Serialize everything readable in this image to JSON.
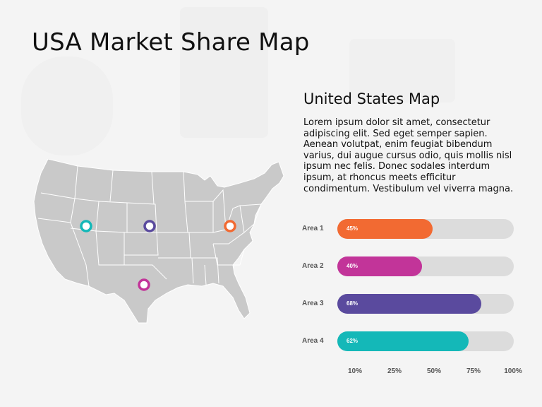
{
  "title": "USA Market Share Map",
  "subtitle": "United States Map",
  "description": "Lorem ipsum dolor sit amet, consectetur adipiscing elit. Sed eget semper sapien. Aenean volutpat, enim feugiat bibendum varius, dui augue cursus odio, quis mollis nisl ipsum nec felis. Donec sodales interdum ipsum, at rhoncus meets efficitur condimentum. Vestibulum vel viverra magna.",
  "chart_data": {
    "type": "bar",
    "orientation": "horizontal",
    "categories": [
      "Area 1",
      "Area 2",
      "Area 3",
      "Area 4"
    ],
    "values": [
      45,
      40,
      68,
      62
    ],
    "value_labels": [
      "45%",
      "40%",
      "68%",
      "62%"
    ],
    "colors": [
      "#f26a32",
      "#c23499",
      "#5a4a9e",
      "#14b8b8"
    ],
    "x_ticks": [
      "10%",
      "25%",
      "50%",
      "75%",
      "100%"
    ]
  },
  "map_markers": [
    {
      "name": "marker-west",
      "color": "#14b8b8"
    },
    {
      "name": "marker-central",
      "color": "#5a4a9e"
    },
    {
      "name": "marker-east",
      "color": "#f26a32"
    },
    {
      "name": "marker-south",
      "color": "#c23499"
    }
  ],
  "map_fill": "#c9c9c9"
}
